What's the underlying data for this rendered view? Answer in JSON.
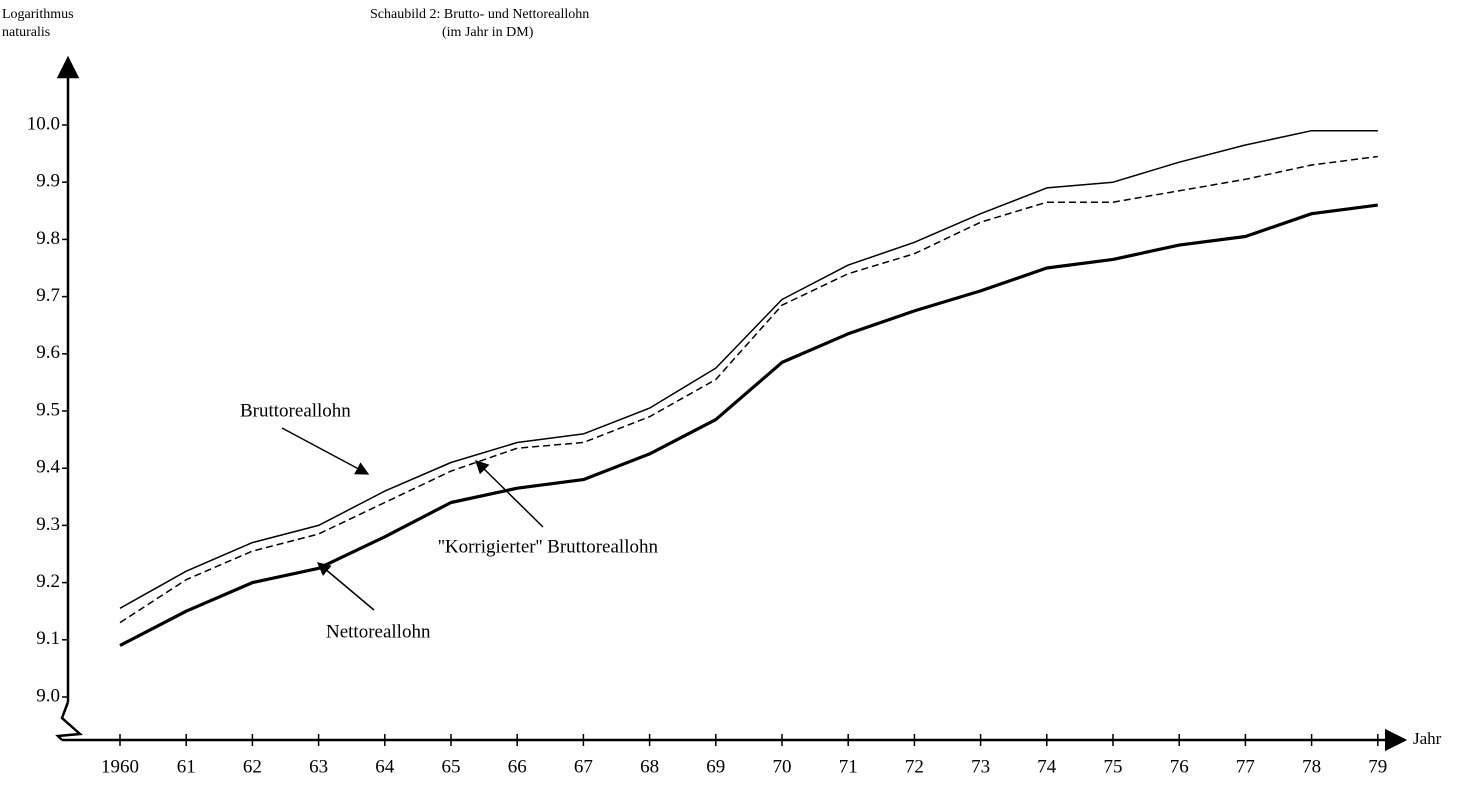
{
  "chart_data": {
    "type": "line",
    "title": "Schaubild 2:  Brutto- und Nettoreallohn",
    "subtitle": "(im Jahr in DM)",
    "y_label": [
      "Logarithmus",
      "naturalis"
    ],
    "x_label": "Jahr",
    "categories": [
      "1960",
      "61",
      "62",
      "63",
      "64",
      "65",
      "66",
      "67",
      "68",
      "69",
      "70",
      "71",
      "72",
      "73",
      "74",
      "75",
      "76",
      "77",
      "78",
      "79"
    ],
    "ylim": [
      9.0,
      10.0
    ],
    "yticks": [
      {
        "value": 9.0,
        "label": "9.0"
      },
      9.1,
      9.2,
      9.3,
      9.4,
      9.5,
      9.6,
      9.7,
      9.8,
      9.9,
      {
        "value": 10.0,
        "label": "10.0"
      }
    ],
    "grid": false,
    "series": [
      {
        "name": "Bruttoreallohn",
        "color": "#000000",
        "line_style": "thin",
        "values": [
          9.155,
          9.22,
          9.27,
          9.3,
          9.36,
          9.41,
          9.445,
          9.46,
          9.505,
          9.575,
          9.695,
          9.755,
          9.795,
          9.845,
          9.89,
          9.9,
          9.935,
          9.965,
          9.99,
          9.99
        ]
      },
      {
        "name": "''Korrigierter'' Bruttoreallohn",
        "color": "#000000",
        "line_style": "dashed",
        "values": [
          9.13,
          9.205,
          9.255,
          9.285,
          9.34,
          9.395,
          9.435,
          9.445,
          9.49,
          9.555,
          9.685,
          9.74,
          9.775,
          9.83,
          9.865,
          9.865,
          9.885,
          9.905,
          9.93,
          9.945
        ]
      },
      {
        "name": "Nettoreallohn",
        "color": "#000000",
        "line_style": "thick",
        "values": [
          9.09,
          9.15,
          9.2,
          9.225,
          9.28,
          9.34,
          9.365,
          9.38,
          9.425,
          9.485,
          9.585,
          9.635,
          9.675,
          9.71,
          9.75,
          9.765,
          9.79,
          9.805,
          9.845,
          9.86
        ]
      }
    ]
  }
}
